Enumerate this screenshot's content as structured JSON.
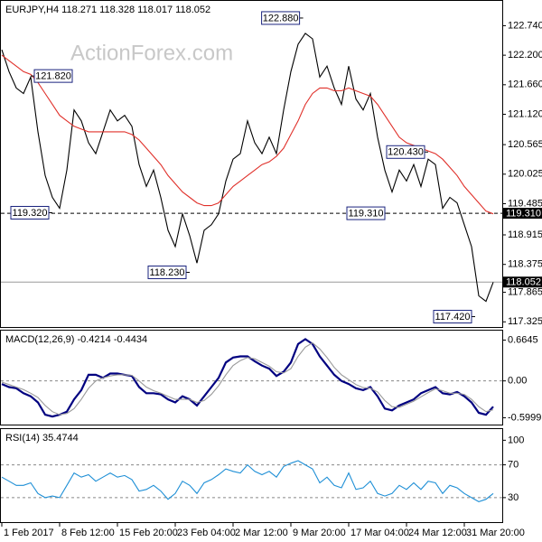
{
  "chart_data": [
    {
      "type": "line",
      "title": "EURJPY,H4 118.271 118.328 118.017 118.052",
      "watermark": "ActionForex.com",
      "xlim": [
        0,
        68
      ],
      "ylim": [
        117.28,
        123.16
      ],
      "yticks": [
        {
          "value": 122.74,
          "label": "122.740"
        },
        {
          "value": 122.2,
          "label": "122.200"
        },
        {
          "value": 121.66,
          "label": "121.660"
        },
        {
          "value": 121.12,
          "label": "121.120"
        },
        {
          "value": 120.565,
          "label": "120.565"
        },
        {
          "value": 120.025,
          "label": "120.025"
        },
        {
          "value": 119.485,
          "label": "119.485"
        },
        {
          "value": 118.915,
          "label": "118.915"
        },
        {
          "value": 118.375,
          "label": "118.375"
        },
        {
          "value": 117.865,
          "label": "117.865"
        },
        {
          "value": 117.325,
          "label": "117.325"
        }
      ],
      "series": [
        {
          "color": "#000000",
          "values": [
            122.3,
            121.9,
            121.6,
            121.5,
            121.8,
            120.8,
            120.0,
            119.6,
            119.4,
            120.1,
            121.2,
            121.0,
            120.6,
            120.4,
            120.8,
            121.2,
            121.0,
            121.1,
            120.9,
            120.2,
            119.8,
            120.1,
            119.6,
            119.0,
            118.7,
            119.3,
            118.9,
            118.4,
            119.0,
            119.1,
            119.3,
            119.9,
            120.3,
            120.4,
            121.0,
            120.6,
            120.4,
            120.7,
            120.4,
            121.2,
            121.9,
            122.4,
            122.6,
            122.5,
            121.8,
            122.0,
            121.6,
            121.3,
            122.0,
            121.4,
            121.2,
            121.5,
            120.7,
            120.1,
            119.7,
            120.1,
            119.9,
            120.2,
            119.8,
            120.3,
            120.2,
            119.4,
            119.6,
            119.5,
            119.1,
            118.7,
            117.8,
            117.7,
            118.05
          ]
        },
        {
          "color": "#e0302a",
          "values": [
            122.2,
            122.1,
            122.0,
            121.9,
            121.85,
            121.7,
            121.5,
            121.3,
            121.1,
            121.0,
            120.9,
            120.85,
            120.8,
            120.8,
            120.8,
            120.8,
            120.8,
            120.8,
            120.75,
            120.65,
            120.5,
            120.35,
            120.2,
            120.0,
            119.85,
            119.7,
            119.6,
            119.5,
            119.45,
            119.45,
            119.5,
            119.65,
            119.8,
            119.9,
            120.0,
            120.1,
            120.2,
            120.25,
            120.35,
            120.5,
            120.75,
            121.0,
            121.3,
            121.5,
            121.6,
            121.6,
            121.55,
            121.55,
            121.6,
            121.55,
            121.5,
            121.45,
            121.3,
            121.1,
            120.9,
            120.7,
            120.6,
            120.55,
            120.5,
            120.45,
            120.4,
            120.3,
            120.15,
            120.0,
            119.8,
            119.65,
            119.5,
            119.35,
            119.3
          ]
        }
      ],
      "annotations": [
        {
          "text": "122.880",
          "value": 122.88,
          "x": 41.7
        },
        {
          "text": "121.820",
          "value": 121.82,
          "x": 4
        },
        {
          "text": "119.320",
          "value": 119.32,
          "x": 7
        },
        {
          "text": "118.230",
          "value": 118.23,
          "x": 26
        },
        {
          "text": "119.310",
          "value": 119.31,
          "x": 53.5
        },
        {
          "text": "120.430",
          "value": 120.43,
          "x": 59
        },
        {
          "text": "117.420",
          "value": 117.42,
          "x": 65.5
        }
      ],
      "levels": [
        {
          "value": 119.31,
          "label": "119.310",
          "style": "dashed"
        },
        {
          "value": 118.052,
          "label": "118.052",
          "style": "solid"
        }
      ]
    },
    {
      "type": "line",
      "title": "MACD(12,26,9) -0.4214 -0.4434",
      "xlim": [
        0,
        68
      ],
      "ylim": [
        -0.652,
        0.745
      ],
      "yticks": [
        0.6645,
        {
          "value": 0,
          "label": "0.00"
        },
        -0.5999
      ],
      "hlines": [
        0
      ],
      "series": [
        {
          "color": "#000080",
          "values": [
            -0.05,
            -0.1,
            -0.12,
            -0.2,
            -0.25,
            -0.35,
            -0.55,
            -0.58,
            -0.55,
            -0.5,
            -0.3,
            -0.15,
            0.1,
            0.1,
            0.05,
            0.12,
            0.12,
            0.1,
            0.08,
            -0.1,
            -0.2,
            -0.2,
            -0.22,
            -0.3,
            -0.35,
            -0.25,
            -0.3,
            -0.4,
            -0.25,
            -0.1,
            0.05,
            0.3,
            0.38,
            0.4,
            0.4,
            0.32,
            0.25,
            0.2,
            0.08,
            0.15,
            0.3,
            0.6,
            0.68,
            0.6,
            0.4,
            0.25,
            0.1,
            0.0,
            -0.05,
            -0.12,
            -0.15,
            -0.1,
            -0.25,
            -0.45,
            -0.48,
            -0.4,
            -0.35,
            -0.3,
            -0.2,
            -0.15,
            -0.1,
            -0.2,
            -0.22,
            -0.18,
            -0.25,
            -0.35,
            -0.52,
            -0.55,
            -0.42
          ]
        },
        {
          "color": "#999999",
          "values": [
            -0.02,
            -0.06,
            -0.1,
            -0.14,
            -0.2,
            -0.27,
            -0.4,
            -0.5,
            -0.55,
            -0.53,
            -0.45,
            -0.3,
            -0.12,
            0.0,
            0.05,
            0.08,
            0.1,
            0.1,
            0.09,
            0.0,
            -0.1,
            -0.16,
            -0.2,
            -0.25,
            -0.3,
            -0.3,
            -0.3,
            -0.35,
            -0.32,
            -0.22,
            -0.08,
            0.1,
            0.25,
            0.33,
            0.38,
            0.36,
            0.3,
            0.24,
            0.15,
            0.13,
            0.2,
            0.4,
            0.55,
            0.62,
            0.52,
            0.38,
            0.22,
            0.1,
            0.02,
            -0.06,
            -0.11,
            -0.12,
            -0.18,
            -0.32,
            -0.42,
            -0.43,
            -0.38,
            -0.33,
            -0.26,
            -0.19,
            -0.13,
            -0.16,
            -0.2,
            -0.2,
            -0.22,
            -0.3,
            -0.42,
            -0.5,
            -0.47
          ]
        }
      ]
    },
    {
      "type": "line",
      "title": "RSI(14) 35.4744",
      "xlim": [
        0,
        68
      ],
      "ylim": [
        -1,
        107
      ],
      "yticks": [
        100,
        70,
        30
      ],
      "hlines": [
        70,
        30
      ],
      "xticks": [
        {
          "value": 0,
          "label": "1 Feb 2017"
        },
        {
          "value": 8,
          "label": "8 Feb 12:00"
        },
        {
          "value": 16,
          "label": "15 Feb 20:00"
        },
        {
          "value": 24,
          "label": "23 Feb 04:00"
        },
        {
          "value": 32,
          "label": "2 Mar 12:00"
        },
        {
          "value": 40,
          "label": "9 Mar 20:00"
        },
        {
          "value": 48,
          "label": "17 Mar 04:00"
        },
        {
          "value": 56,
          "label": "24 Mar 12:00"
        },
        {
          "value": 64,
          "label": "31 Mar 20:00"
        }
      ],
      "series": [
        {
          "color": "#1e8fd6",
          "values": [
            55,
            50,
            45,
            45,
            48,
            35,
            30,
            32,
            30,
            45,
            60,
            55,
            58,
            50,
            55,
            60,
            55,
            57,
            52,
            38,
            40,
            45,
            38,
            28,
            35,
            50,
            45,
            35,
            48,
            52,
            58,
            65,
            62,
            60,
            70,
            62,
            58,
            62,
            55,
            68,
            72,
            75,
            70,
            65,
            48,
            55,
            45,
            42,
            60,
            40,
            42,
            50,
            35,
            32,
            35,
            45,
            40,
            48,
            40,
            50,
            48,
            35,
            45,
            42,
            35,
            30,
            25,
            28,
            35
          ]
        }
      ]
    }
  ]
}
